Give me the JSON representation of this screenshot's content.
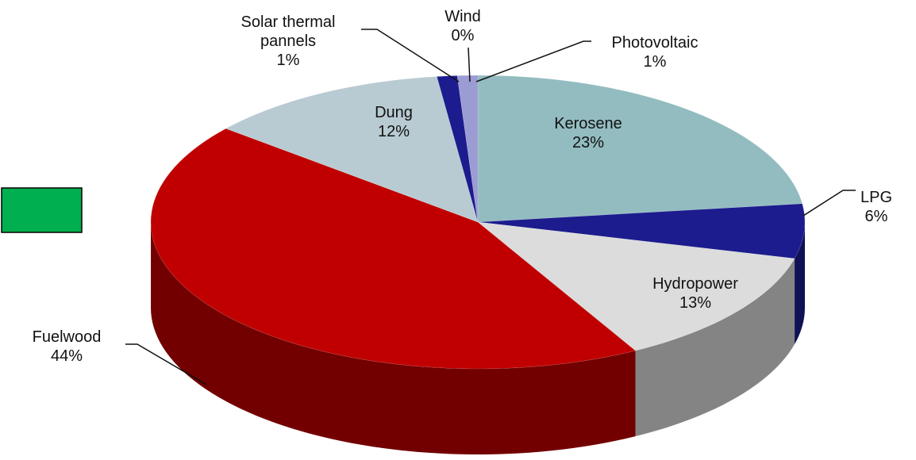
{
  "chart_data": {
    "type": "pie",
    "categories": [
      "Kerosene",
      "LPG",
      "Hydropower",
      "Fuelwood",
      "Dung",
      "Solar thermal pannels",
      "Wind",
      "Photovoltaic"
    ],
    "values": [
      23,
      6,
      13,
      44,
      12,
      1,
      0,
      1
    ],
    "value_labels": [
      "23%",
      "6%",
      "13%",
      "44%",
      "12%",
      "1%",
      "0%",
      "1%"
    ],
    "colors": [
      "#93bcc0",
      "#1c1c8e",
      "#dcdcdc",
      "#c00000",
      "#b9cbd2",
      "#1c1c8e",
      "#4a4aa8",
      "#9c9cd4"
    ]
  }
}
